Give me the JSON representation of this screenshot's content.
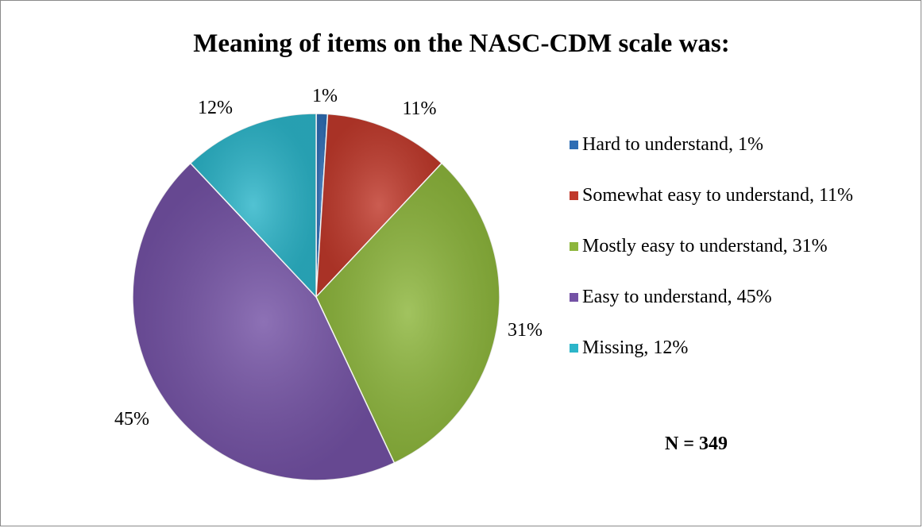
{
  "chart_data": {
    "type": "pie",
    "title": "Meaning of items on the NASC-CDM scale was:",
    "slices": [
      {
        "label": "Hard to understand",
        "value": 1,
        "data_label": "1%",
        "legend": "Hard to understand, 1%",
        "color": "#2E6DB4"
      },
      {
        "label": "Somewhat easy to understand",
        "value": 11,
        "data_label": "11%",
        "legend": "Somewhat easy to understand, 11%",
        "color": "#C0392B"
      },
      {
        "label": "Mostly easy to understand",
        "value": 31,
        "data_label": "31%",
        "legend": "Mostly easy to understand, 31%",
        "color": "#8DB63C"
      },
      {
        "label": "Easy to understand",
        "value": 45,
        "data_label": "45%",
        "legend": "Easy to understand, 45%",
        "color": "#7452A5"
      },
      {
        "label": "Missing",
        "value": 12,
        "data_label": "12%",
        "legend": "Missing, 12%",
        "color": "#2CB5C9"
      }
    ],
    "legend_position": "right",
    "annotation": "N = 349"
  }
}
